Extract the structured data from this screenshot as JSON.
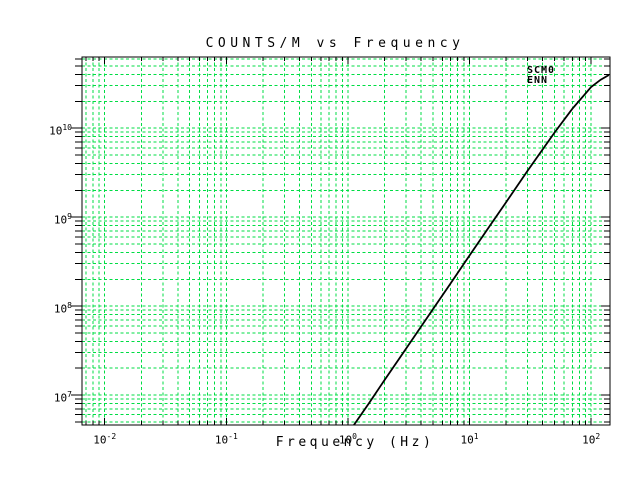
{
  "title_text": "COUNTS/M vs Frequency",
  "legend": {
    "station": "SCM0",
    "channel": "ENN"
  },
  "colors": {
    "background": "#FFFFFF",
    "grid": "#00DD44",
    "frame": "#000000",
    "curve": "#000000",
    "text": "#000000"
  },
  "chart_data": {
    "type": "line",
    "title": "COUNTS/M vs Frequency",
    "xlabel": "Frequency (Hz)",
    "ylabel": "",
    "x_scale": "log",
    "y_scale": "log",
    "xlim": [
      0.0065,
      143
    ],
    "ylim": [
      4600000.0,
      63000000000.0
    ],
    "x_tick_exponents": [
      -2,
      -1,
      0,
      1,
      2
    ],
    "y_tick_exponents": [
      7,
      8,
      9,
      10
    ],
    "grid": true,
    "grid_style": "dashed-minor-and-major",
    "legend_position": "top-right-inside",
    "series": [
      {
        "name": "SCM0 ENN",
        "points": [
          [
            1.12,
            4600000.0
          ],
          [
            1.5,
            8200000.0
          ],
          [
            2,
            14700000.0
          ],
          [
            3,
            33000000.0
          ],
          [
            5,
            92000000.0
          ],
          [
            7,
            180000000.0
          ],
          [
            10,
            370000000.0
          ],
          [
            15,
            830000000.0
          ],
          [
            20,
            1470000000.0
          ],
          [
            30,
            3300000000.0
          ],
          [
            50,
            8900000000.0
          ],
          [
            70,
            16500000000.0
          ],
          [
            100,
            29000000000.0
          ],
          [
            120,
            35000000000.0
          ],
          [
            140,
            39500000000.0
          ]
        ]
      }
    ]
  }
}
